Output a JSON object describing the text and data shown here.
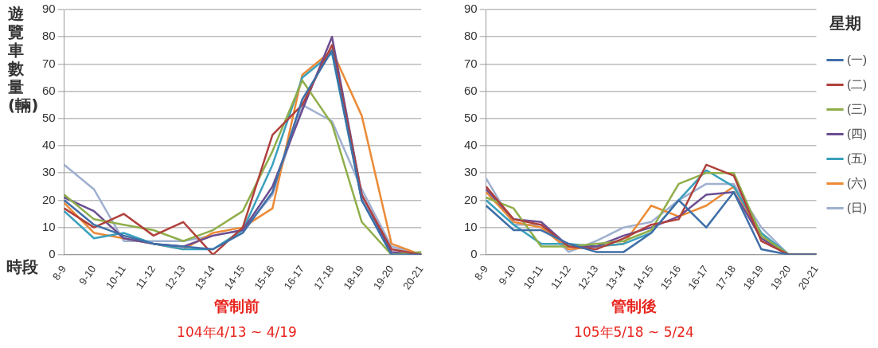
{
  "chart_data": [
    {
      "type": "line",
      "title": "管制前",
      "annotations": [
        "104年4/13 ~ 4/19"
      ],
      "ylabel": "遊覽車數量(輛)",
      "xlabel": "時段",
      "categories": [
        "8-9",
        "9-10",
        "10-11",
        "11-12",
        "12-13",
        "13-14",
        "14-15",
        "15-16",
        "16-17",
        "17-18",
        "18-19",
        "19-20",
        "20-21"
      ],
      "ylim": [
        0,
        90
      ],
      "yticks": [
        0,
        10,
        20,
        30,
        40,
        50,
        60,
        70,
        80,
        90
      ],
      "grid": "y",
      "legend": false,
      "marker": "none",
      "line_style": "solid",
      "series": [
        {
          "color": "#3f6fa8",
          "values": [
            20,
            11,
            7,
            4,
            3,
            2,
            8,
            23,
            57,
            75,
            20,
            0,
            0
          ]
        },
        {
          "color": "#b0403c",
          "values": [
            17,
            10,
            15,
            7,
            12,
            0,
            10,
            44,
            55,
            77,
            22,
            2,
            0
          ]
        },
        {
          "color": "#8fae4a",
          "values": [
            22,
            13,
            11,
            9,
            5,
            9,
            16,
            38,
            64,
            48,
            12,
            0,
            1
          ]
        },
        {
          "color": "#6b4e92",
          "values": [
            21,
            16,
            6,
            4,
            3,
            7,
            9,
            25,
            53,
            80,
            22,
            1,
            0
          ]
        },
        {
          "color": "#3aa0bd",
          "values": [
            16,
            6,
            8,
            4,
            2,
            2,
            9,
            33,
            65,
            74,
            20,
            0,
            0
          ]
        },
        {
          "color": "#ec8a35",
          "values": [
            19,
            8,
            6,
            4,
            2,
            8,
            10,
            17,
            66,
            75,
            51,
            4,
            0
          ]
        },
        {
          "color": "#9fb0d0",
          "values": [
            33,
            24,
            5,
            5,
            5,
            7,
            9,
            22,
            55,
            49,
            24,
            3,
            0
          ]
        }
      ]
    },
    {
      "type": "line",
      "title": "管制後",
      "annotations": [
        "105年5/18 ~ 5/24"
      ],
      "legend_title": "星期",
      "categories": [
        "8-9",
        "9-10",
        "10-11",
        "11-12",
        "12-13",
        "13-14",
        "14-15",
        "15-16",
        "16-17",
        "17-18",
        "18-19",
        "19-20",
        "20-21"
      ],
      "ylim": [
        0,
        90
      ],
      "yticks": [
        0,
        10,
        20,
        30,
        40,
        50,
        60,
        70,
        80,
        90
      ],
      "grid": "y",
      "legend": "right",
      "marker": "none",
      "line_style": "solid",
      "series": [
        {
          "name": "(一)",
          "color": "#3f6fa8",
          "values": [
            18,
            9,
            9,
            4,
            1,
            1,
            8,
            20,
            10,
            23,
            2,
            0,
            0
          ]
        },
        {
          "name": "(二)",
          "color": "#b0403c",
          "values": [
            25,
            13,
            11,
            3,
            2,
            6,
            11,
            13,
            33,
            29,
            5,
            0,
            0
          ]
        },
        {
          "name": "(三)",
          "color": "#8fae4a",
          "values": [
            21,
            17,
            3,
            3,
            4,
            5,
            9,
            26,
            30,
            30,
            7,
            0,
            0
          ]
        },
        {
          "name": "(四)",
          "color": "#6b4e92",
          "values": [
            24,
            13,
            12,
            3,
            3,
            7,
            10,
            14,
            22,
            23,
            6,
            0,
            0
          ]
        },
        {
          "name": "(五)",
          "color": "#3aa0bd",
          "values": [
            20,
            11,
            4,
            4,
            3,
            4,
            8,
            20,
            31,
            25,
            8,
            0,
            0
          ]
        },
        {
          "name": "(六)",
          "color": "#ec8a35",
          "values": [
            23,
            12,
            10,
            2,
            3,
            4,
            18,
            14,
            18,
            25,
            6,
            0,
            0
          ]
        },
        {
          "name": "(日)",
          "color": "#9fb0d0",
          "values": [
            28,
            11,
            11,
            1,
            5,
            10,
            12,
            20,
            26,
            26,
            10,
            0,
            0
          ]
        }
      ]
    }
  ]
}
